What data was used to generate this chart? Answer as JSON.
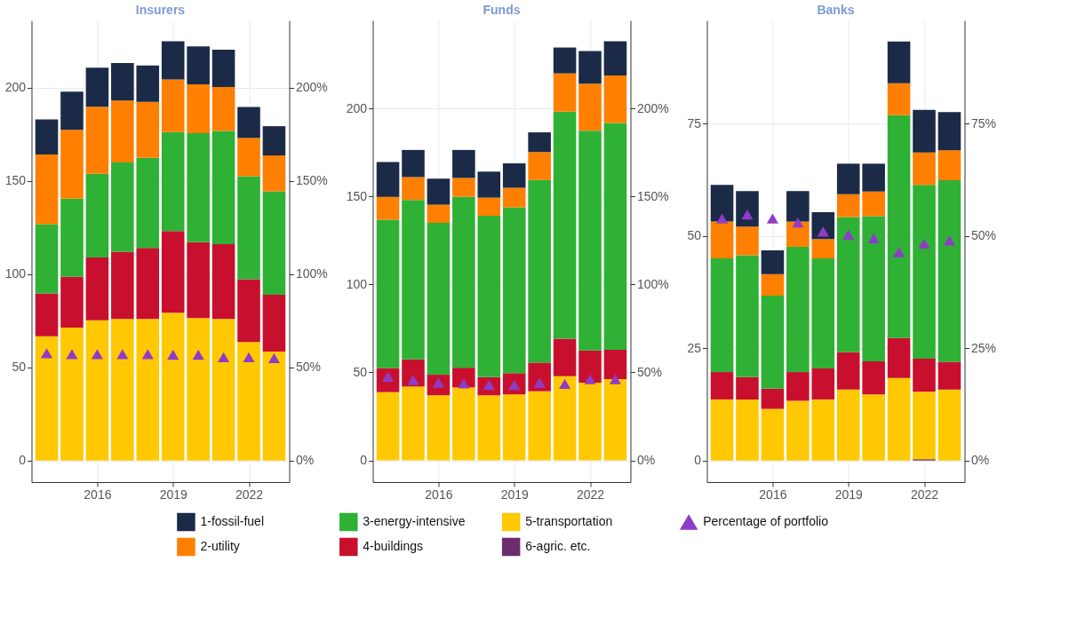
{
  "chart_data": [
    {
      "type": "bar",
      "title": "Insurers",
      "stacked": true,
      "grid": true,
      "legend": "bottom",
      "marker": "triangle",
      "x": [
        2014,
        2015,
        2016,
        2017,
        2018,
        2019,
        2020,
        2021,
        2022,
        2023
      ],
      "xlim": [
        2013.4,
        2023.6
      ],
      "xticks": [
        2016,
        2019,
        2022
      ],
      "ylim": [
        -11.5,
        236
      ],
      "yticks": [
        0,
        50,
        100,
        150,
        200
      ],
      "y2lim": [
        -11.5,
        236
      ],
      "y2ticks": [
        {
          "value": 0,
          "label": "0%"
        },
        {
          "value": 50,
          "label": "50%"
        },
        {
          "value": 100,
          "label": "100%"
        },
        {
          "value": 150,
          "label": "150%"
        },
        {
          "value": 200,
          "label": "200%"
        }
      ],
      "series": [
        {
          "name": "5-transportation",
          "color": "#ffc800",
          "values": [
            66.7,
            71.3,
            75.2,
            75.9,
            75.9,
            79.3,
            76.4,
            75.9,
            63.6,
            58.5
          ]
        },
        {
          "name": "4-buildings",
          "color": "#c8102e",
          "values": [
            23,
            27.3,
            33.7,
            36.1,
            38.1,
            43.8,
            40.7,
            40.2,
            33.7,
            30.4
          ]
        },
        {
          "name": "3-energy-intensive",
          "color": "#2eb135",
          "values": [
            37.1,
            41.9,
            44.9,
            47.8,
            48.4,
            53,
            58.5,
            60.7,
            55.2,
            55.5
          ]
        },
        {
          "name": "2-utility",
          "color": "#ff7f00",
          "values": [
            37.3,
            36.8,
            35.9,
            33.2,
            29.9,
            28.2,
            26.1,
            23.5,
            20.5,
            19.2
          ]
        },
        {
          "name": "1-fossil-fuel",
          "color": "#1b2a47",
          "values": [
            18.8,
            20.5,
            20.9,
            20.2,
            19.5,
            20.5,
            20.4,
            20,
            16.6,
            15.7
          ]
        },
        {
          "name": "Percentage of portfolio",
          "type": "scatter",
          "axis": "y2",
          "color": "#8e3cc8",
          "values": [
            57.6,
            57.1,
            57.1,
            57.1,
            57.1,
            56.8,
            56.8,
            55.4,
            55.4,
            55
          ]
        }
      ]
    },
    {
      "type": "bar",
      "title": "Funds",
      "stacked": true,
      "grid": true,
      "legend": "bottom",
      "marker": "triangle",
      "x": [
        2014,
        2015,
        2016,
        2017,
        2018,
        2019,
        2020,
        2021,
        2022,
        2023
      ],
      "xlim": [
        2013.4,
        2023.6
      ],
      "xticks": [
        2016,
        2019,
        2022
      ],
      "ylim": [
        -12.3,
        250
      ],
      "yticks": [
        0,
        50,
        100,
        150,
        200
      ],
      "y2lim": [
        -12.3,
        250
      ],
      "y2ticks": [
        {
          "value": 0,
          "label": "0%"
        },
        {
          "value": 50,
          "label": "50%"
        },
        {
          "value": 100,
          "label": "100%"
        },
        {
          "value": 150,
          "label": "150%"
        },
        {
          "value": 200,
          "label": "200%"
        }
      ],
      "series": [
        {
          "name": "5-transportation",
          "color": "#ffc800",
          "values": [
            38.8,
            42,
            37,
            41.5,
            37,
            37.5,
            39.3,
            47.8,
            44.2,
            46.2
          ]
        },
        {
          "name": "4-buildings",
          "color": "#c8102e",
          "values": [
            13.6,
            15.4,
            11.7,
            11.2,
            10.3,
            12.1,
            16.3,
            21.4,
            18.3,
            16.7
          ]
        },
        {
          "name": "3-energy-intensive",
          "color": "#2eb135",
          "values": [
            84.4,
            90.6,
            86.3,
            97.1,
            91.7,
            94.2,
            103.8,
            129,
            124.8,
            128.9
          ]
        },
        {
          "name": "2-utility",
          "color": "#ff7f00",
          "values": [
            13,
            13,
            10.3,
            10.7,
            10.3,
            11.1,
            15.8,
            21.7,
            26.7,
            26.9
          ]
        },
        {
          "name": "1-fossil-fuel",
          "color": "#1b2a47",
          "values": [
            19.8,
            15.4,
            14.8,
            15.9,
            14.8,
            13.9,
            11.2,
            14.7,
            18.6,
            19.5
          ]
        },
        {
          "name": "Percentage of portfolio",
          "type": "scatter",
          "axis": "y2",
          "color": "#8e3cc8",
          "values": [
            47.5,
            45.7,
            44.2,
            43.8,
            42.9,
            42.9,
            44.2,
            43.5,
            46.2,
            46.2
          ]
        }
      ]
    },
    {
      "type": "bar",
      "title": "Banks",
      "stacked": true,
      "grid": true,
      "legend": "bottom",
      "marker": "triangle",
      "x": [
        2014,
        2015,
        2016,
        2017,
        2018,
        2019,
        2020,
        2021,
        2022,
        2023
      ],
      "xlim": [
        2013.4,
        2023.6
      ],
      "xticks": [
        2016,
        2019,
        2022
      ],
      "ylim": [
        -4.8,
        98
      ],
      "yticks": [
        0,
        25,
        50,
        75
      ],
      "y2lim": [
        -4.8,
        98
      ],
      "y2ticks": [
        {
          "value": 0,
          "label": "0%"
        },
        {
          "value": 25,
          "label": "25%"
        },
        {
          "value": 50,
          "label": "50%"
        },
        {
          "value": 75,
          "label": "75%"
        }
      ],
      "series": [
        {
          "name": "6-agric. etc.",
          "color": "#6b2d6b",
          "values": [
            null,
            null,
            null,
            null,
            null,
            null,
            null,
            null,
            0.3,
            null
          ]
        },
        {
          "name": "5-transportation",
          "color": "#ffc800",
          "values": [
            13.6,
            13.6,
            11.5,
            13.3,
            13.6,
            15.8,
            14.7,
            18.4,
            15.0,
            15.8
          ]
        },
        {
          "name": "4-buildings",
          "color": "#c8102e",
          "values": [
            6.1,
            5,
            4.5,
            6.4,
            6.9,
            8.3,
            7.4,
            8.9,
            7.4,
            6.2
          ]
        },
        {
          "name": "3-energy-intensive",
          "color": "#2eb135",
          "values": [
            25.3,
            27.1,
            20.7,
            27.9,
            24.5,
            30.1,
            32.3,
            49.6,
            38.7,
            40.4
          ]
        },
        {
          "name": "2-utility",
          "color": "#ff7f00",
          "values": [
            8.2,
            6.4,
            4.8,
            5.6,
            4.3,
            5.1,
            5.5,
            7.1,
            7.2,
            6.7
          ]
        },
        {
          "name": "1-fossil-fuel",
          "color": "#1b2a47",
          "values": [
            8.2,
            7.9,
            5.3,
            6.8,
            6,
            6.8,
            6.2,
            9.3,
            9.5,
            8.5
          ]
        },
        {
          "name": "Percentage of portfolio",
          "type": "scatter",
          "axis": "y2",
          "color": "#8e3cc8",
          "values": [
            53.9,
            54.8,
            53.9,
            53,
            51,
            50.3,
            49.5,
            46.4,
            48.3,
            49
          ]
        }
      ]
    }
  ]
}
